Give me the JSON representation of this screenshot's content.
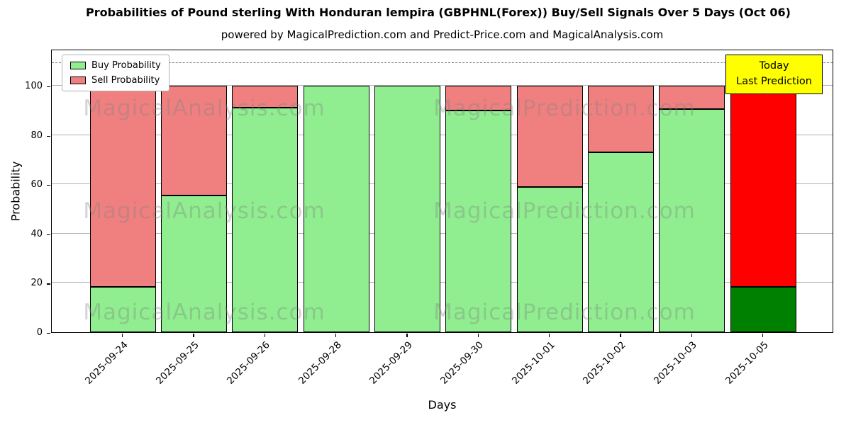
{
  "chart_data": {
    "type": "bar",
    "stacked": true,
    "title": "Probabilities of Pound sterling With Honduran lempira (GBPHNL(Forex)) Buy/Sell Signals Over 5 Days (Oct 06)",
    "subtitle": "powered by MagicalPrediction.com and Predict-Price.com and MagicalAnalysis.com",
    "xlabel": "Days",
    "ylabel": "Probability",
    "ylim": [
      0,
      115
    ],
    "yticks": [
      0,
      20,
      40,
      60,
      80,
      100
    ],
    "grid": true,
    "legend_position": "upper left",
    "categories": [
      "2025-09-24",
      "2025-09-25",
      "2025-09-26",
      "2025-09-28",
      "2025-09-29",
      "2025-09-30",
      "2025-10-01",
      "2025-10-02",
      "2025-10-03",
      "2025-10-05"
    ],
    "series": [
      {
        "name": "Buy Probability",
        "color": "#90EE90",
        "values": [
          18.5,
          55.5,
          91,
          100,
          100,
          90,
          59,
          73,
          90.5,
          18.5
        ]
      },
      {
        "name": "Sell Probability",
        "color": "#F08080",
        "values": [
          81.5,
          44.5,
          9,
          0,
          0,
          10,
          41,
          27,
          9.5,
          81.5
        ]
      }
    ],
    "last_bar_colors": {
      "buy": "#008000",
      "sell": "#FF0000"
    },
    "dashed_line_y": 110
  },
  "annotation": {
    "line1": "Today",
    "line2": "Last Prediction",
    "bg": "#FFFF00"
  },
  "watermarks": [
    "MagicalAnalysis.com",
    "MagicalPrediction.com"
  ]
}
